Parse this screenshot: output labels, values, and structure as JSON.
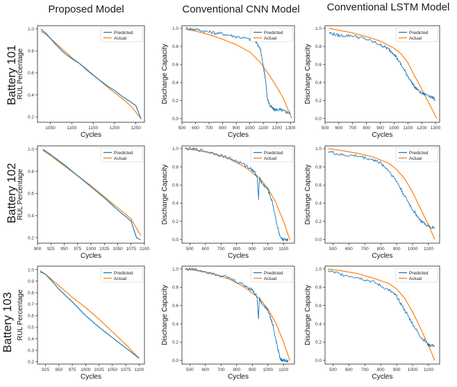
{
  "columns": [
    "Proposed Model",
    "Conventional CNN Model",
    "Conventional LSTM Model"
  ],
  "rows": [
    "Battery 101",
    "Battery 102",
    "Battery 103"
  ],
  "legend": {
    "predicted": "Predicted",
    "actual": "Actual"
  },
  "colors": {
    "predicted": "#1f77b4",
    "actual": "#ff7f0e"
  },
  "chart_data": [
    {
      "type": "line",
      "row": "Battery 101",
      "column": "Proposed Model",
      "xlabel": "Cycles",
      "ylabel": "RUL Percentage",
      "xlim": [
        1020,
        1270
      ],
      "ylim": [
        0.15,
        1.03
      ],
      "xticks": [
        1050,
        1100,
        1150,
        1200,
        1250
      ],
      "yticks": [
        0.2,
        0.4,
        0.6,
        0.8,
        1.0
      ],
      "legend_position": "top-right",
      "series": [
        {
          "name": "Predicted",
          "x": [
            1028,
            1040,
            1060,
            1080,
            1100,
            1120,
            1140,
            1160,
            1180,
            1200,
            1220,
            1240,
            1250,
            1262
          ],
          "y": [
            1.0,
            0.96,
            0.87,
            0.79,
            0.73,
            0.68,
            0.61,
            0.55,
            0.49,
            0.44,
            0.38,
            0.33,
            0.3,
            0.18
          ]
        },
        {
          "name": "Actual",
          "x": [
            1028,
            1040,
            1060,
            1080,
            1100,
            1130,
            1160,
            1190,
            1220,
            1240,
            1263
          ],
          "y": [
            0.98,
            0.95,
            0.88,
            0.81,
            0.74,
            0.65,
            0.55,
            0.45,
            0.36,
            0.29,
            0.18
          ]
        }
      ]
    },
    {
      "type": "line",
      "row": "Battery 101",
      "column": "Conventional CNN Model",
      "xlabel": "Cycles",
      "ylabel": "Discharge Capacity",
      "xlim": [
        500,
        1330
      ],
      "ylim": [
        -0.04,
        1.03
      ],
      "xticks": [
        500,
        600,
        700,
        800,
        900,
        1000,
        1100,
        1200,
        1300
      ],
      "yticks": [
        0.0,
        0.2,
        0.4,
        0.6,
        0.8,
        1.0
      ],
      "legend_position": "top-right",
      "series": [
        {
          "name": "Predicted",
          "x": [
            530,
            600,
            700,
            800,
            900,
            1000,
            1050,
            1080,
            1100,
            1110,
            1120,
            1130,
            1150,
            1180,
            1220,
            1260,
            1300
          ],
          "y": [
            1.0,
            0.99,
            0.96,
            0.94,
            0.91,
            0.88,
            0.85,
            0.76,
            0.58,
            0.5,
            0.38,
            0.22,
            0.14,
            0.1,
            0.1,
            0.08,
            0.06
          ]
        },
        {
          "name": "Actual",
          "x": [
            530,
            600,
            700,
            800,
            900,
            1000,
            1080,
            1150,
            1200,
            1250,
            1310
          ],
          "y": [
            0.99,
            0.97,
            0.93,
            0.88,
            0.82,
            0.74,
            0.62,
            0.47,
            0.35,
            0.22,
            0.0
          ]
        }
      ]
    },
    {
      "type": "line",
      "row": "Battery 101",
      "column": "Conventional LSTM Model",
      "xlabel": "Cycles",
      "ylabel": "Discharge Capacity",
      "xlim": [
        500,
        1330
      ],
      "ylim": [
        -0.04,
        1.03
      ],
      "xticks": [
        500,
        600,
        700,
        800,
        900,
        1000,
        1100,
        1200,
        1300
      ],
      "yticks": [
        0.0,
        0.2,
        0.4,
        0.6,
        0.8,
        1.0
      ],
      "legend_position": "top-right",
      "series": [
        {
          "name": "Predicted",
          "x": [
            530,
            600,
            700,
            800,
            900,
            950,
            1000,
            1050,
            1100,
            1150,
            1200,
            1250,
            1300
          ],
          "y": [
            0.95,
            0.92,
            0.92,
            0.88,
            0.82,
            0.78,
            0.72,
            0.6,
            0.47,
            0.35,
            0.28,
            0.26,
            0.21
          ]
        },
        {
          "name": "Actual",
          "x": [
            530,
            600,
            700,
            800,
            900,
            1000,
            1050,
            1100,
            1150,
            1200,
            1250,
            1310
          ],
          "y": [
            1.0,
            0.98,
            0.95,
            0.91,
            0.86,
            0.78,
            0.72,
            0.62,
            0.47,
            0.33,
            0.18,
            0.0
          ]
        }
      ]
    },
    {
      "type": "line",
      "row": "Battery 102",
      "column": "Proposed Model",
      "xlabel": "Cycles",
      "ylabel": "RUL Percentage",
      "xlim": [
        900,
        1100
      ],
      "ylim": [
        0.15,
        1.03
      ],
      "xticks": [
        900,
        925,
        950,
        975,
        1000,
        1025,
        1050,
        1075,
        1100
      ],
      "yticks": [
        0.2,
        0.4,
        0.6,
        0.8,
        1.0
      ],
      "legend_position": "top-right",
      "series": [
        {
          "name": "Predicted",
          "x": [
            910,
            925,
            950,
            975,
            1000,
            1025,
            1050,
            1075,
            1085,
            1093
          ],
          "y": [
            1.0,
            0.95,
            0.86,
            0.76,
            0.66,
            0.56,
            0.45,
            0.35,
            0.2,
            0.18
          ]
        },
        {
          "name": "Actual",
          "x": [
            910,
            925,
            950,
            975,
            1000,
            1025,
            1050,
            1075,
            1093
          ],
          "y": [
            0.99,
            0.94,
            0.85,
            0.76,
            0.67,
            0.57,
            0.47,
            0.37,
            0.22
          ]
        }
      ]
    },
    {
      "type": "line",
      "row": "Battery 102",
      "column": "Conventional CNN Model",
      "xlabel": "Cycles",
      "ylabel": "Discharge Capacity",
      "xlim": [
        450,
        1170
      ],
      "ylim": [
        -0.04,
        1.03
      ],
      "xticks": [
        500,
        600,
        700,
        800,
        900,
        1000,
        1100
      ],
      "yticks": [
        0.0,
        0.2,
        0.4,
        0.6,
        0.8,
        1.0
      ],
      "legend_position": "top-right",
      "series": [
        {
          "name": "Predicted",
          "x": [
            470,
            550,
            650,
            750,
            850,
            900,
            930,
            940,
            945,
            960,
            1000,
            1030,
            1060,
            1080,
            1100,
            1130
          ],
          "y": [
            1.0,
            0.99,
            0.95,
            0.9,
            0.82,
            0.77,
            0.7,
            0.45,
            0.68,
            0.62,
            0.55,
            0.4,
            0.15,
            0.01,
            0.0,
            0.0
          ]
        },
        {
          "name": "Actual",
          "x": [
            470,
            550,
            650,
            750,
            850,
            950,
            1000,
            1050,
            1100,
            1140
          ],
          "y": [
            1.0,
            0.98,
            0.95,
            0.89,
            0.8,
            0.67,
            0.56,
            0.41,
            0.2,
            0.0
          ]
        }
      ]
    },
    {
      "type": "line",
      "row": "Battery 102",
      "column": "Conventional LSTM Model",
      "xlabel": "Cycles",
      "ylabel": "Discharge Capacity",
      "xlim": [
        450,
        1170
      ],
      "ylim": [
        -0.04,
        1.03
      ],
      "xticks": [
        500,
        600,
        700,
        800,
        900,
        1000,
        1100
      ],
      "yticks": [
        0.0,
        0.2,
        0.4,
        0.6,
        0.8,
        1.0
      ],
      "legend_position": "top-right",
      "series": [
        {
          "name": "Predicted",
          "x": [
            470,
            550,
            650,
            750,
            800,
            850,
            900,
            950,
            1000,
            1050,
            1100,
            1140
          ],
          "y": [
            0.97,
            0.93,
            0.92,
            0.88,
            0.84,
            0.76,
            0.64,
            0.48,
            0.33,
            0.21,
            0.14,
            0.13
          ]
        },
        {
          "name": "Actual",
          "x": [
            470,
            550,
            650,
            750,
            850,
            900,
            950,
            1000,
            1050,
            1100,
            1140
          ],
          "y": [
            1.0,
            0.98,
            0.95,
            0.91,
            0.84,
            0.77,
            0.67,
            0.52,
            0.34,
            0.16,
            0.0
          ]
        }
      ]
    },
    {
      "type": "line",
      "row": "Battery 103",
      "column": "Proposed Model",
      "xlabel": "Cycles",
      "ylabel": "RUL Percentage",
      "xlim": [
        910,
        1110
      ],
      "ylim": [
        0.18,
        1.03
      ],
      "xticks": [
        925,
        950,
        975,
        1000,
        1025,
        1050,
        1075,
        1100
      ],
      "yticks": [
        0.2,
        0.3,
        0.4,
        0.5,
        0.6,
        0.7,
        0.8,
        0.9,
        1.0
      ],
      "legend_position": "top-right",
      "series": [
        {
          "name": "Predicted",
          "x": [
            915,
            925,
            935,
            950,
            975,
            1000,
            1025,
            1050,
            1075,
            1100
          ],
          "y": [
            0.98,
            0.96,
            0.91,
            0.83,
            0.72,
            0.6,
            0.5,
            0.41,
            0.32,
            0.23
          ]
        },
        {
          "name": "Actual",
          "x": [
            915,
            925,
            950,
            975,
            1000,
            1025,
            1050,
            1075,
            1100
          ],
          "y": [
            0.99,
            0.96,
            0.86,
            0.76,
            0.67,
            0.57,
            0.46,
            0.35,
            0.23
          ]
        }
      ]
    },
    {
      "type": "line",
      "row": "Battery 103",
      "column": "Conventional CNN Model",
      "xlabel": "Cycles",
      "ylabel": "Discharge Capacity",
      "xlim": [
        450,
        1170
      ],
      "ylim": [
        -0.04,
        1.03
      ],
      "xticks": [
        500,
        600,
        700,
        800,
        900,
        1000,
        1100
      ],
      "yticks": [
        0.0,
        0.2,
        0.4,
        0.6,
        0.8,
        1.0
      ],
      "legend_position": "top-right",
      "series": [
        {
          "name": "Predicted",
          "x": [
            470,
            550,
            650,
            750,
            850,
            900,
            930,
            940,
            945,
            960,
            1000,
            1030,
            1060,
            1080,
            1100,
            1130
          ],
          "y": [
            1.0,
            0.99,
            0.95,
            0.9,
            0.82,
            0.77,
            0.7,
            0.45,
            0.68,
            0.62,
            0.55,
            0.4,
            0.15,
            0.01,
            0.0,
            0.0
          ]
        },
        {
          "name": "Actual",
          "x": [
            470,
            550,
            650,
            750,
            850,
            950,
            1000,
            1050,
            1100,
            1140
          ],
          "y": [
            1.0,
            0.98,
            0.95,
            0.89,
            0.8,
            0.67,
            0.56,
            0.41,
            0.2,
            0.0
          ]
        }
      ]
    },
    {
      "type": "line",
      "row": "Battery 103",
      "column": "Conventional LSTM Model",
      "xlabel": "Cycles",
      "ylabel": "Discharge Capacity",
      "xlim": [
        450,
        1170
      ],
      "ylim": [
        -0.04,
        1.03
      ],
      "xticks": [
        500,
        600,
        700,
        800,
        900,
        1000,
        1100
      ],
      "yticks": [
        0.0,
        0.2,
        0.4,
        0.6,
        0.8,
        1.0
      ],
      "legend_position": "top-right",
      "series": [
        {
          "name": "Predicted",
          "x": [
            470,
            550,
            650,
            750,
            850,
            900,
            950,
            1000,
            1050,
            1100,
            1140
          ],
          "y": [
            0.98,
            0.94,
            0.91,
            0.86,
            0.77,
            0.7,
            0.55,
            0.4,
            0.26,
            0.17,
            0.16
          ]
        },
        {
          "name": "Actual",
          "x": [
            470,
            550,
            650,
            750,
            850,
            900,
            950,
            1000,
            1050,
            1100,
            1140
          ],
          "y": [
            1.0,
            0.98,
            0.95,
            0.9,
            0.84,
            0.78,
            0.68,
            0.53,
            0.35,
            0.16,
            0.0
          ]
        }
      ]
    }
  ]
}
